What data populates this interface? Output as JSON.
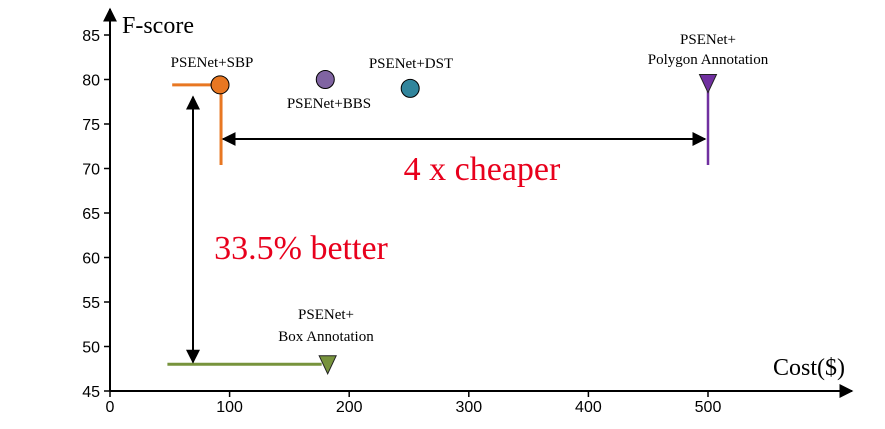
{
  "chart_data": {
    "type": "scatter",
    "title": "",
    "xlabel": "Cost($)",
    "ylabel": "F-score",
    "xlim": [
      0,
      620
    ],
    "ylim": [
      45,
      87
    ],
    "xticks": [
      0,
      100,
      200,
      300,
      400,
      500
    ],
    "yticks": [
      45,
      50,
      55,
      60,
      65,
      70,
      75,
      80,
      85
    ],
    "grid": false,
    "points": [
      {
        "name": "PSENet+SBP",
        "label_lines": [
          "PSENet+SBP"
        ],
        "x": 92,
        "y": 79.4,
        "color": "#e87722",
        "marker": "circle"
      },
      {
        "name": "PSENet+BBS",
        "label_lines": [
          "PSENet+BBS"
        ],
        "x": 180,
        "y": 80.0,
        "color": "#8064a2",
        "marker": "circle"
      },
      {
        "name": "PSENet+DST",
        "label_lines": [
          "PSENet+DST"
        ],
        "x": 251,
        "y": 79.0,
        "color": "#31859c",
        "marker": "circle"
      },
      {
        "name": "PSENet+ Polygon Annotation",
        "label_lines": [
          "PSENet+",
          "Polygon Annotation"
        ],
        "x": 500,
        "y": 79.6,
        "color": "#7030a0",
        "marker": "triangle-down"
      },
      {
        "name": "PSENet+ Box Annotation",
        "label_lines": [
          "PSENet+",
          "Box Annotation"
        ],
        "x": 182,
        "y": 48.0,
        "color": "#77933c",
        "marker": "triangle-down"
      }
    ],
    "annotations": [
      {
        "text": "4 x cheaper",
        "color": "#e8001c"
      },
      {
        "text": "33.5% better",
        "color": "#e8001c"
      }
    ]
  }
}
